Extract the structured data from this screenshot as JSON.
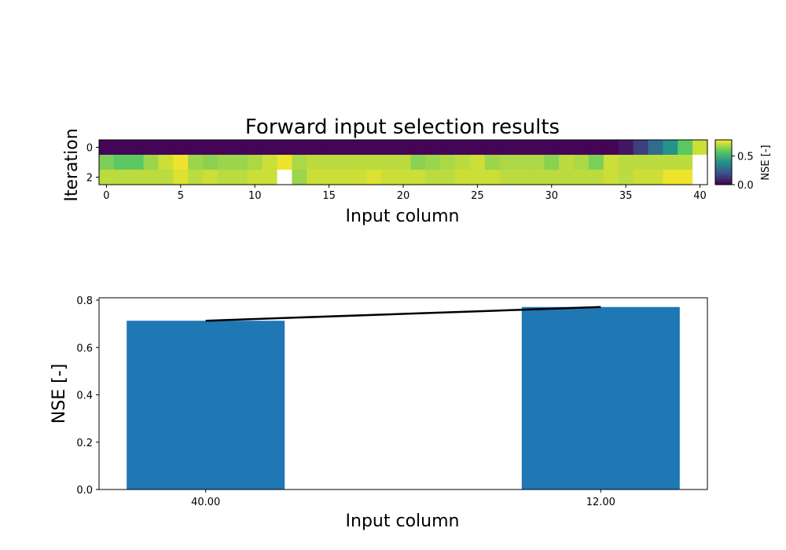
{
  "chart_data": [
    {
      "type": "heatmap",
      "title": "Forward input selection results",
      "xlabel": "Input column",
      "ylabel": "Iteration",
      "x_ticks": [
        "0",
        "5",
        "10",
        "15",
        "20",
        "25",
        "30",
        "35",
        "40"
      ],
      "y_ticks": [
        "0",
        "2"
      ],
      "columns": 41,
      "rows": 3,
      "colormap": "viridis",
      "vmin": 0.0,
      "vmax": 0.78,
      "colorbar": {
        "label": "NSE [-]",
        "ticks": [
          "0.0",
          "0.5"
        ],
        "tick_values": [
          0.0,
          0.5
        ]
      },
      "values": [
        [
          0.01,
          0.01,
          0.01,
          0.01,
          0.01,
          0.01,
          0.01,
          0.01,
          0.01,
          0.01,
          0.01,
          0.01,
          0.01,
          0.01,
          0.01,
          0.01,
          0.01,
          0.01,
          0.01,
          0.01,
          0.01,
          0.01,
          0.01,
          0.01,
          0.01,
          0.01,
          0.01,
          0.01,
          0.01,
          0.01,
          0.01,
          0.01,
          0.01,
          0.01,
          0.01,
          0.05,
          0.15,
          0.28,
          0.4,
          0.58,
          0.72
        ],
        [
          0.62,
          0.58,
          0.58,
          0.66,
          0.72,
          0.76,
          0.66,
          0.64,
          0.66,
          0.66,
          0.68,
          0.72,
          0.76,
          0.68,
          0.7,
          0.7,
          0.7,
          0.7,
          0.7,
          0.7,
          0.7,
          0.64,
          0.66,
          0.68,
          0.7,
          0.72,
          0.66,
          0.68,
          0.68,
          0.68,
          0.64,
          0.7,
          0.68,
          0.62,
          0.72,
          0.7,
          0.7,
          0.7,
          0.7,
          0.7,
          null
        ],
        [
          0.7,
          0.7,
          0.7,
          0.7,
          0.7,
          0.74,
          0.7,
          0.72,
          0.7,
          0.7,
          0.72,
          0.72,
          null,
          0.66,
          0.72,
          0.72,
          0.72,
          0.72,
          0.74,
          0.72,
          0.72,
          0.72,
          0.7,
          0.7,
          0.72,
          0.72,
          0.72,
          0.7,
          0.7,
          0.7,
          0.7,
          0.7,
          0.7,
          0.7,
          0.72,
          0.7,
          0.72,
          0.72,
          0.76,
          0.76,
          null
        ]
      ]
    },
    {
      "type": "bar",
      "categories": [
        "40.00",
        "12.00"
      ],
      "values": [
        0.713,
        0.771
      ],
      "line_values": [
        0.713,
        0.771
      ],
      "xlabel": "Input column",
      "ylabel": "NSE [-]",
      "ylim": [
        0.0,
        0.8
      ],
      "y_ticks": [
        "0.0",
        "0.2",
        "0.4",
        "0.6",
        "0.8"
      ],
      "y_tick_values": [
        0.0,
        0.2,
        0.4,
        0.6,
        0.8
      ],
      "bar_color": "#1f77b4",
      "line_color": "#000000"
    }
  ]
}
